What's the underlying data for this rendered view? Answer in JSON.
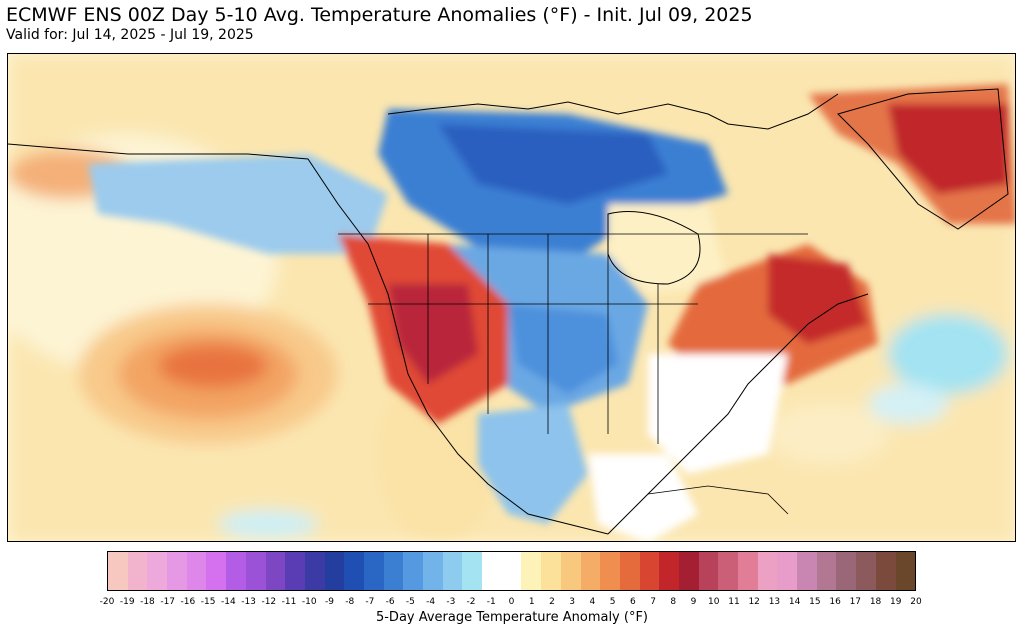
{
  "header": {
    "title": "ECMWF ENS 00Z Day 5-10 Avg. Temperature Anomalies (°F) - Init. Jul 09, 2025",
    "subtitle": "Valid for: Jul 14, 2025 - Jul 19, 2025"
  },
  "map": {
    "region": "North America",
    "anomalies": {
      "warm_regions": [
        {
          "area": "Pacific Northwest / Great Basin",
          "level": "strong"
        },
        {
          "area": "Southern Quebec / Maritimes / Northeast US",
          "level": "strong"
        },
        {
          "area": "Greenland",
          "level": "strong"
        },
        {
          "area": "Northeast Pacific Ocean",
          "level": "moderate"
        }
      ],
      "cool_regions": [
        {
          "area": "Northern Canada / Hudson Bay",
          "level": "moderate"
        },
        {
          "area": "Northern Plains / Midwest",
          "level": "moderate"
        },
        {
          "area": "Texas / Mexico",
          "level": "weak"
        },
        {
          "area": "Alaska",
          "level": "weak"
        }
      ]
    }
  },
  "colorbar": {
    "label": "5-Day Average Temperature Anomaly (°F)",
    "ticks": [
      "-20",
      "-19",
      "-18",
      "-17",
      "-16",
      "-15",
      "-14",
      "-13",
      "-12",
      "-11",
      "-10",
      "-9",
      "-8",
      "-7",
      "-6",
      "-5",
      "-4",
      "-3",
      "-2",
      "-1",
      "0",
      "1",
      "2",
      "3",
      "4",
      "5",
      "6",
      "7",
      "8",
      "9",
      "10",
      "11",
      "12",
      "13",
      "14",
      "15",
      "16",
      "17",
      "18",
      "19",
      "20"
    ],
    "colors": [
      "#f7c8c0",
      "#f2b3cc",
      "#eda8dc",
      "#e598e4",
      "#de86ea",
      "#d570ee",
      "#b35de6",
      "#9c52d6",
      "#7d47c4",
      "#5a3db4",
      "#3c3aa4",
      "#233e9e",
      "#1f4fb2",
      "#2a66c4",
      "#3b7fd3",
      "#559ae0",
      "#72b4ea",
      "#8dcbef",
      "#a3e3f2",
      "#ffffff",
      "#ffffff",
      "#fdf3b8",
      "#fbe19a",
      "#f8c87e",
      "#f5ac66",
      "#f08e50",
      "#e56a3c",
      "#d84530",
      "#c2262a",
      "#a51f33",
      "#b8425a",
      "#cb5f77",
      "#e17d97",
      "#eca0c4",
      "#e89cc9",
      "#c986b3",
      "#b27792",
      "#9a6778",
      "#8c5a5c",
      "#7c4a3d",
      "#6a472a"
    ]
  }
}
